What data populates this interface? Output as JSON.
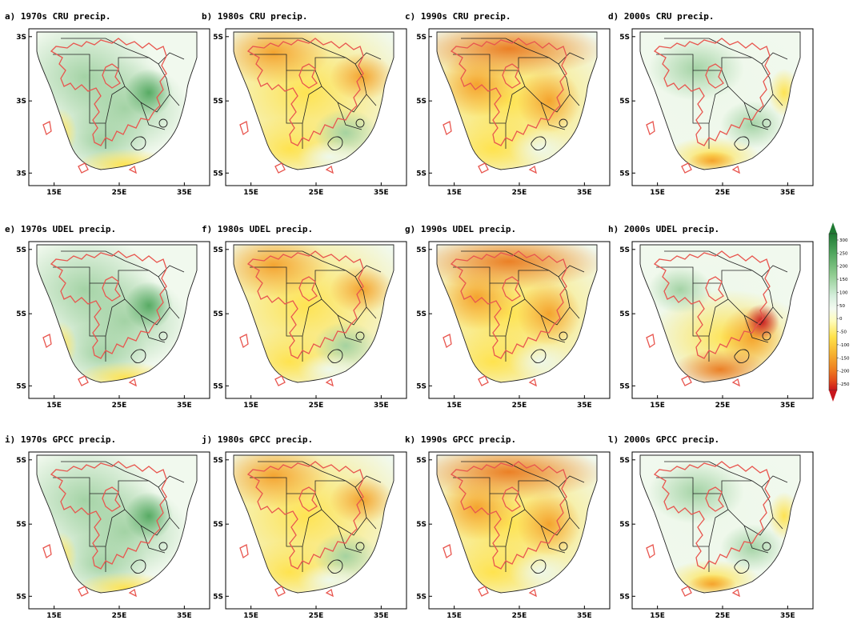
{
  "panels": [
    {
      "title": "a) 1970s CRU precip.",
      "pattern": "wet",
      "xticks": [
        "15E",
        "25E",
        "35E"
      ],
      "yticks": [
        "3S",
        "3S",
        "3S"
      ]
    },
    {
      "title": "b) 1980s CRU precip.",
      "pattern": "dry",
      "xticks": [
        "15E",
        "25E",
        "35E"
      ],
      "yticks": [
        "5S",
        "5S",
        "5S"
      ]
    },
    {
      "title": "c) 1990s CRU precip.",
      "pattern": "vdry",
      "xticks": [
        "15E",
        "25E",
        "35E"
      ],
      "yticks": [
        "5S",
        "5S",
        "5S"
      ]
    },
    {
      "title": "d) 2000s CRU precip.",
      "pattern": "wet2",
      "xticks": [
        "15E",
        "25E",
        "35E"
      ],
      "yticks": [
        "5S",
        "5S",
        "5S"
      ]
    },
    {
      "title": "e) 1970s UDEL precip.",
      "pattern": "wet",
      "xticks": [
        "15E",
        "25E",
        "35E"
      ],
      "yticks": [
        "5S",
        "5S",
        "5S"
      ]
    },
    {
      "title": "f) 1980s UDEL precip.",
      "pattern": "dry",
      "xticks": [
        "15E",
        "25E",
        "35E"
      ],
      "yticks": [
        "5S",
        "5S",
        "5S"
      ]
    },
    {
      "title": "g) 1990s UDEL precip.",
      "pattern": "vdry",
      "xticks": [
        "15E",
        "25E",
        "35E"
      ],
      "yticks": [
        "5S",
        "5S",
        "5S"
      ]
    },
    {
      "title": "h) 2000s UDEL precip.",
      "pattern": "east",
      "xticks": [
        "15E",
        "25E",
        "35E"
      ],
      "yticks": [
        "5S",
        "5S",
        "5S"
      ]
    },
    {
      "title": "i) 1970s GPCC precip.",
      "pattern": "wet",
      "xticks": [
        "15E",
        "25E",
        "35E"
      ],
      "yticks": [
        "5S",
        "5S",
        "5S"
      ]
    },
    {
      "title": "j) 1980s GPCC precip.",
      "pattern": "dry",
      "xticks": [
        "15E",
        "25E",
        "35E"
      ],
      "yticks": [
        "5S",
        "5S",
        "5S"
      ]
    },
    {
      "title": "k) 1990s GPCC precip.",
      "pattern": "vdry",
      "xticks": [
        "15E",
        "25E",
        "35E"
      ],
      "yticks": [
        "5S",
        "5S",
        "5S"
      ]
    },
    {
      "title": "l) 2000s GPCC precip.",
      "pattern": "wet2",
      "xticks": [
        "15E",
        "25E",
        "35E"
      ],
      "yticks": [
        "5S",
        "5S",
        "5S"
      ]
    }
  ],
  "colorbar": {
    "ticks": [
      "300",
      "250",
      "200",
      "150",
      "100",
      "50",
      "0",
      "-50",
      "-100",
      "-150",
      "-200",
      "-250"
    ],
    "colors": [
      "#1f7a33",
      "#3e9e4f",
      "#65b86f",
      "#8fcc90",
      "#b5debb",
      "#d6efdd",
      "#f4fbf1",
      "#fffcb8",
      "#ffe24a",
      "#f7b531",
      "#ef8221",
      "#e34a1b",
      "#c8161d"
    ]
  },
  "colors": {
    "border": "#222222",
    "mask_outline": "#e8564f",
    "ocean": "#ffffff"
  }
}
